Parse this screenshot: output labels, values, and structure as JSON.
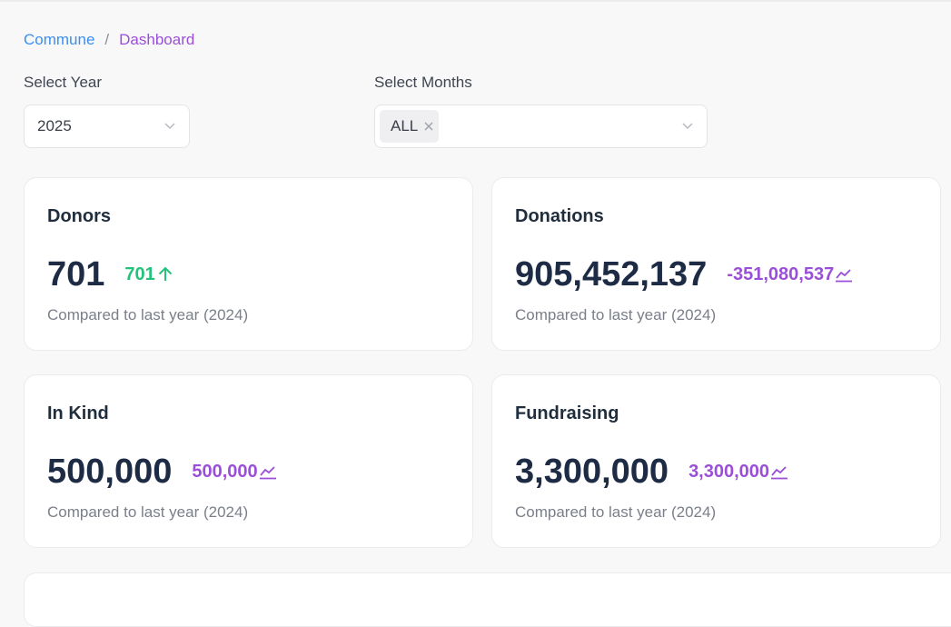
{
  "breadcrumb": {
    "root": "Commune",
    "separator": "/",
    "current": "Dashboard"
  },
  "filters": {
    "year": {
      "label": "Select Year",
      "value": "2025"
    },
    "months": {
      "label": "Select Months",
      "selected": "ALL"
    }
  },
  "cards": {
    "donors": {
      "title": "Donors",
      "value": "701",
      "change": "701",
      "change_icon": "arrow-up-icon",
      "compare": "Compared to last year (2024)"
    },
    "donations": {
      "title": "Donations",
      "value": "905,452,137",
      "change": "-351,080,537",
      "change_icon": "trend-chart-icon",
      "compare": "Compared to last year (2024)"
    },
    "in_kind": {
      "title": "In Kind",
      "value": "500,000",
      "change": "500,000",
      "change_icon": "trend-chart-icon",
      "compare": "Compared to last year (2024)"
    },
    "fundraising": {
      "title": "Fundraising",
      "value": "3,300,000",
      "change": "3,300,000",
      "change_icon": "trend-chart-icon",
      "compare": "Compared to last year (2024)"
    }
  },
  "colors": {
    "accent_blue": "#3b8ff0",
    "accent_purple": "#9b4fd9",
    "positive_green": "#22c37a",
    "value_dark": "#1d2b45"
  }
}
